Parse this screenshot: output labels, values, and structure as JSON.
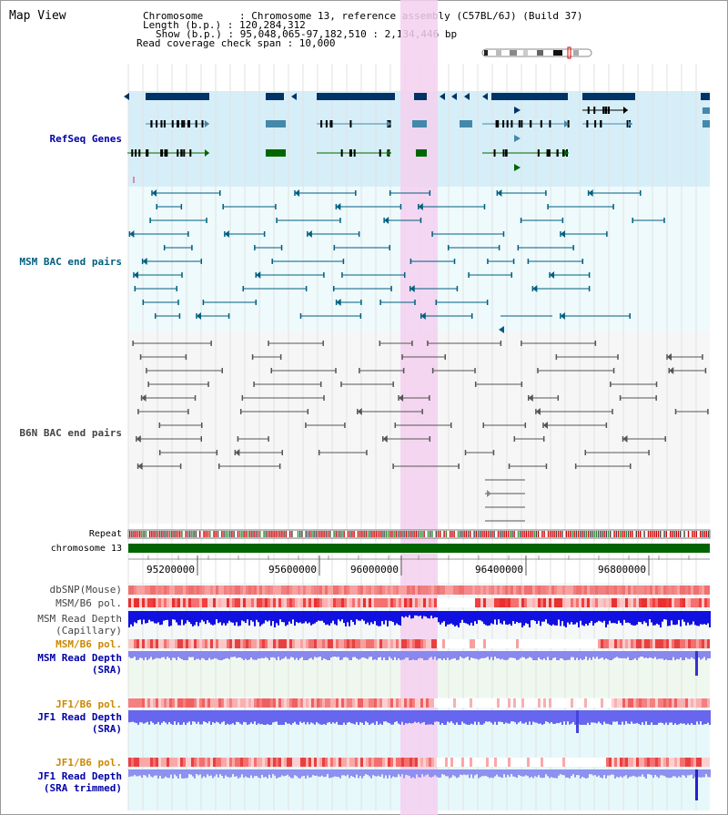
{
  "title": "Map View",
  "info": {
    "chromosome": "Chromosome      : Chromosome 13, reference assembly (C57BL/6J) (Build 37)",
    "length": "Length (b.p.) : 120,284,312",
    "show": "Show (b.p.) : 95,048,065-97,182,510 : 2,134,446 bp",
    "coverage": "Read coverage check span : 10,000"
  },
  "tracks": {
    "refseq": "RefSeq Genes",
    "msm_bac": "MSM BAC end pairs",
    "b6n_bac": "B6N BAC end pairs",
    "repeat": "Repeat",
    "chromosome": "chromosome 13",
    "dbsnp": "dbSNP(Mouse)",
    "msm_b6_pol_1": "MSM/B6 pol.",
    "msm_depth_cap_1": "MSM Read Depth",
    "msm_depth_cap_2": "(Capillary)",
    "msm_b6_pol_2": "MSM/B6 pol.",
    "msm_depth_sra_1": "MSM Read Depth",
    "msm_depth_sra_2": "(SRA)",
    "jf1_pol_1": "JF1/B6 pol.",
    "jf1_depth_sra_1": "JF1 Read Depth",
    "jf1_depth_sra_2": "(SRA)",
    "jf1_pol_2": "JF1/B6 pol.",
    "jf1_depth_trim_1": "JF1 Read Depth",
    "jf1_depth_trim_2": "(SRA trimmed)"
  },
  "axis": {
    "ticks": [
      "95200000",
      "95600000",
      "96000000",
      "96400000",
      "96800000"
    ]
  },
  "colors": {
    "refseq_label": "#0000aa",
    "msm_label": "#005f7f",
    "b6n_label": "#444444",
    "pol_label_orange": "#cc8800",
    "depth_label_blue": "#0000aa",
    "highlight": "#f5d0f0",
    "chromosome_bar": "#006400",
    "gene_dark": "#003366",
    "gene_teal": "#4488aa",
    "gene_green": "#006600",
    "msm_line": "#005f7f",
    "b6n_line": "#555555"
  }
}
